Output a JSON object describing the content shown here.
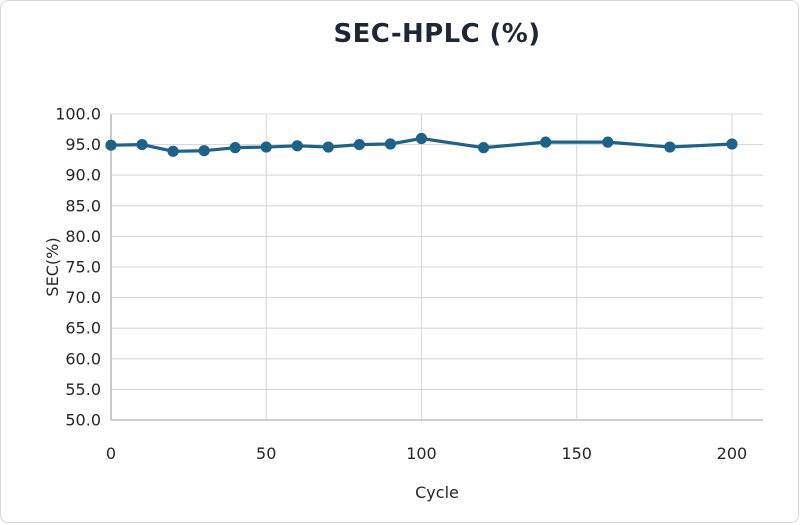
{
  "figure": {
    "background": "#ffffff",
    "border_color": "#d8d8d8"
  },
  "chart_data": {
    "type": "line",
    "title": "SEC-HPLC (%)",
    "xlabel": "Cycle",
    "ylabel": "SEC(%)",
    "x": [
      0,
      10,
      20,
      30,
      40,
      50,
      60,
      70,
      80,
      90,
      100,
      120,
      140,
      160,
      180,
      200
    ],
    "series": [
      {
        "name": "SEC-HPLC",
        "values": [
          94.9,
          95.0,
          93.9,
          94.0,
          94.5,
          94.6,
          94.8,
          94.6,
          95.0,
          95.1,
          96.0,
          94.5,
          95.4,
          95.4,
          94.6,
          95.1
        ],
        "color": "#1f6287"
      }
    ],
    "xlim": [
      0,
      210
    ],
    "ylim": [
      50,
      100
    ],
    "x_ticks": [
      0,
      50,
      100,
      150,
      200
    ],
    "x_tick_labels": [
      "0",
      "50",
      "100",
      "150",
      "200"
    ],
    "y_ticks": [
      50,
      55,
      60,
      65,
      70,
      75,
      80,
      85,
      90,
      95,
      100
    ],
    "y_tick_labels": [
      "50.0",
      "55.0",
      "60.0",
      "65.0",
      "70.0",
      "75.0",
      "80.0",
      "85.0",
      "90.0",
      "95.0",
      "100.0"
    ],
    "grid": true,
    "legend": "none",
    "colors": {
      "series": "#1f6287",
      "grid": "#d9d9d9",
      "axis": "#bdbdbd",
      "tick_text": "#262626",
      "axis_title_text": "#262626",
      "title_text": "#1f2733"
    }
  }
}
